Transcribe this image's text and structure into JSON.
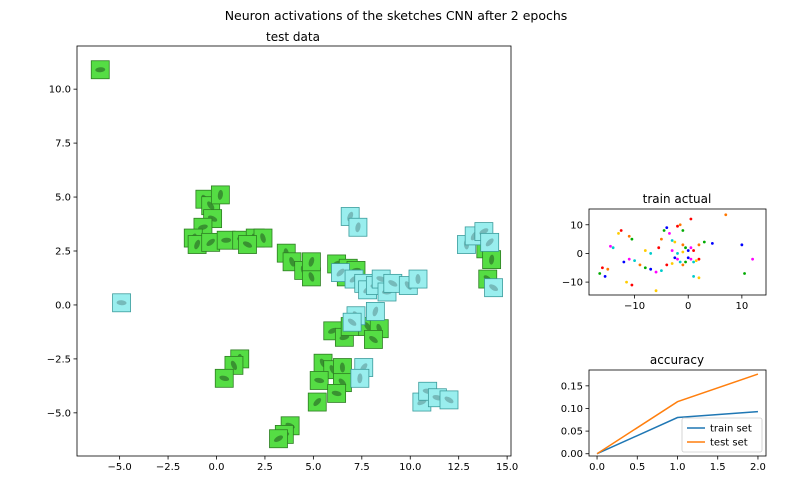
{
  "suptitle": "Neuron activations of the sketches CNN after 2 epochs",
  "colors": {
    "green_tile": "#55dd44",
    "cyan_tile": "#99eeee",
    "train_line": "#1f77b4",
    "test_line": "#ff7f0e"
  },
  "chart_data": [
    {
      "id": "test",
      "type": "scatter",
      "title": "test data",
      "xlim": [
        -7.2,
        15.2
      ],
      "ylim": [
        -7.0,
        12.0
      ],
      "xticks": [
        -5.0,
        -2.5,
        0.0,
        2.5,
        5.0,
        7.5,
        10.0,
        12.5,
        15.0
      ],
      "xtick_labels": [
        "−5.0",
        "−2.5",
        "0.0",
        "2.5",
        "5.0",
        "7.5",
        "10.0",
        "12.5",
        "15.0"
      ],
      "yticks": [
        -5.0,
        -2.5,
        0.0,
        2.5,
        5.0,
        7.5,
        10.0
      ],
      "ytick_labels": [
        "−5.0",
        "−2.5",
        "0.0",
        "2.5",
        "5.0",
        "7.5",
        "10.0"
      ],
      "marker": "image tiles",
      "series": [
        {
          "values": [
            [
              -6.0,
              10.9
            ],
            [
              -0.6,
              4.9
            ],
            [
              -0.3,
              4.6
            ],
            [
              0.2,
              5.1
            ],
            [
              -0.2,
              4.0
            ],
            [
              -0.7,
              3.6
            ],
            [
              -1.2,
              3.1
            ],
            [
              -1.0,
              2.8
            ],
            [
              -0.3,
              2.9
            ],
            [
              0.5,
              3.0
            ],
            [
              1.3,
              3.0
            ],
            [
              2.0,
              3.1
            ],
            [
              2.4,
              3.1
            ],
            [
              1.6,
              2.8
            ],
            [
              3.6,
              2.4
            ],
            [
              3.9,
              2.0
            ],
            [
              4.5,
              1.6
            ],
            [
              4.9,
              1.3
            ],
            [
              4.9,
              2.0
            ],
            [
              6.2,
              1.9
            ],
            [
              6.8,
              1.7
            ],
            [
              6.7,
              1.3
            ],
            [
              7.2,
              1.6
            ],
            [
              6.0,
              -1.2
            ],
            [
              6.6,
              -1.5
            ],
            [
              6.9,
              -1.0
            ],
            [
              7.8,
              -1.0
            ],
            [
              8.4,
              -1.1
            ],
            [
              8.1,
              -1.6
            ],
            [
              5.5,
              -2.7
            ],
            [
              6.0,
              -3.0
            ],
            [
              6.5,
              -2.9
            ],
            [
              5.3,
              -3.5
            ],
            [
              6.5,
              -3.6
            ],
            [
              6.2,
              -4.1
            ],
            [
              5.2,
              -4.5
            ],
            [
              1.2,
              -2.5
            ],
            [
              0.9,
              -2.8
            ],
            [
              0.4,
              -3.4
            ],
            [
              3.8,
              -5.6
            ],
            [
              3.5,
              -6.0
            ],
            [
              3.2,
              -6.2
            ],
            [
              13.9,
              2.6
            ],
            [
              14.2,
              2.1
            ],
            [
              14.0,
              1.2
            ]
          ]
        },
        {
          "values": [
            [
              -4.9,
              0.1
            ],
            [
              6.9,
              4.1
            ],
            [
              7.3,
              3.6
            ],
            [
              6.4,
              1.5
            ],
            [
              7.1,
              1.2
            ],
            [
              7.6,
              1.0
            ],
            [
              7.8,
              0.7
            ],
            [
              8.2,
              0.9
            ],
            [
              8.5,
              1.2
            ],
            [
              8.8,
              0.6
            ],
            [
              9.1,
              1.0
            ],
            [
              9.9,
              0.9
            ],
            [
              10.4,
              1.2
            ],
            [
              8.2,
              -0.3
            ],
            [
              7.2,
              -0.5
            ],
            [
              7.0,
              -0.8
            ],
            [
              7.6,
              -2.9
            ],
            [
              7.4,
              -3.4
            ],
            [
              10.6,
              -4.5
            ],
            [
              10.9,
              -4.0
            ],
            [
              11.4,
              -4.3
            ],
            [
              12.0,
              -4.4
            ],
            [
              12.9,
              2.8
            ],
            [
              13.3,
              3.2
            ],
            [
              13.8,
              3.4
            ],
            [
              14.1,
              2.9
            ],
            [
              14.3,
              0.8
            ]
          ]
        }
      ]
    },
    {
      "id": "train",
      "type": "scatter",
      "title": "train actual",
      "xlim": [
        -18.5,
        14.5
      ],
      "ylim": [
        -14.5,
        15.5
      ],
      "xticks": [
        -10,
        0,
        10
      ],
      "xtick_labels": [
        "−10",
        "0",
        "10"
      ],
      "yticks": [
        -10,
        0,
        10
      ],
      "ytick_labels": [
        "−10",
        "0",
        "10"
      ],
      "marker_colors": [
        "#ff0000",
        "#ff7700",
        "#00aa00",
        "#0000ff",
        "#ff00ff",
        "#00cccc",
        "#ffcc00"
      ],
      "series": [
        {
          "values": [
            [
              -16,
              -5
            ],
            [
              -15,
              -5.5
            ],
            [
              -16.5,
              -7
            ],
            [
              -15.5,
              -8
            ],
            [
              -14.5,
              2.5
            ],
            [
              -14,
              2
            ],
            [
              -13,
              7
            ],
            [
              -12.5,
              8
            ],
            [
              -11,
              6
            ],
            [
              -10.5,
              5
            ],
            [
              -12,
              -3
            ],
            [
              -11,
              -2
            ],
            [
              -10,
              -2.5
            ],
            [
              -11.5,
              -10
            ],
            [
              -10.5,
              -11
            ],
            [
              -9,
              -4
            ],
            [
              -8,
              -5
            ],
            [
              -7,
              -5.5
            ],
            [
              -6,
              -6.5
            ],
            [
              -5,
              -6
            ],
            [
              -6,
              -13
            ],
            [
              -5.5,
              2
            ],
            [
              -5,
              5
            ],
            [
              -4.5,
              8
            ],
            [
              -4,
              9
            ],
            [
              -3.5,
              7
            ],
            [
              -3,
              4.5
            ],
            [
              -2.5,
              4
            ],
            [
              -2,
              9.5
            ],
            [
              -1.5,
              10
            ],
            [
              -1,
              8
            ],
            [
              -2.5,
              -1.5
            ],
            [
              -2,
              -2
            ],
            [
              -1.5,
              -3
            ],
            [
              -3,
              -3.5
            ],
            [
              -4,
              -4
            ],
            [
              -1,
              -4
            ],
            [
              -0.5,
              -3
            ],
            [
              0,
              -1.5
            ],
            [
              0.5,
              -2
            ],
            [
              1,
              -3
            ],
            [
              1.5,
              -2.5
            ],
            [
              2,
              -2
            ],
            [
              -1,
              3
            ],
            [
              -0.5,
              2
            ],
            [
              0,
              1
            ],
            [
              0.5,
              2
            ],
            [
              1,
              -8
            ],
            [
              2,
              -8.5
            ],
            [
              1,
              1
            ],
            [
              2,
              3
            ],
            [
              3,
              4
            ],
            [
              4.5,
              3.5
            ],
            [
              -3,
              1
            ],
            [
              -2,
              0
            ],
            [
              -1,
              0.5
            ],
            [
              0.5,
              12
            ],
            [
              7,
              13.5
            ],
            [
              10.5,
              -7
            ],
            [
              10,
              3
            ],
            [
              12,
              -2
            ],
            [
              -7,
              0
            ],
            [
              -8,
              1
            ]
          ]
        }
      ]
    },
    {
      "id": "acc",
      "type": "line",
      "title": "accuracy",
      "x": [
        0,
        1,
        2
      ],
      "xlim": [
        -0.1,
        2.1
      ],
      "ylim": [
        -0.005,
        0.185
      ],
      "xticks": [
        0.0,
        0.5,
        1.0,
        1.5,
        2.0
      ],
      "xtick_labels": [
        "0.0",
        "0.5",
        "1.0",
        "1.5",
        "2.0"
      ],
      "yticks": [
        0.0,
        0.05,
        0.1,
        0.15
      ],
      "ytick_labels": [
        "0.00",
        "0.05",
        "0.10",
        "0.15"
      ],
      "legend": "lower-right",
      "series": [
        {
          "name": "train set",
          "values": [
            0.0,
            0.08,
            0.093
          ]
        },
        {
          "name": "test set",
          "values": [
            0.0,
            0.115,
            0.176
          ]
        }
      ]
    }
  ]
}
